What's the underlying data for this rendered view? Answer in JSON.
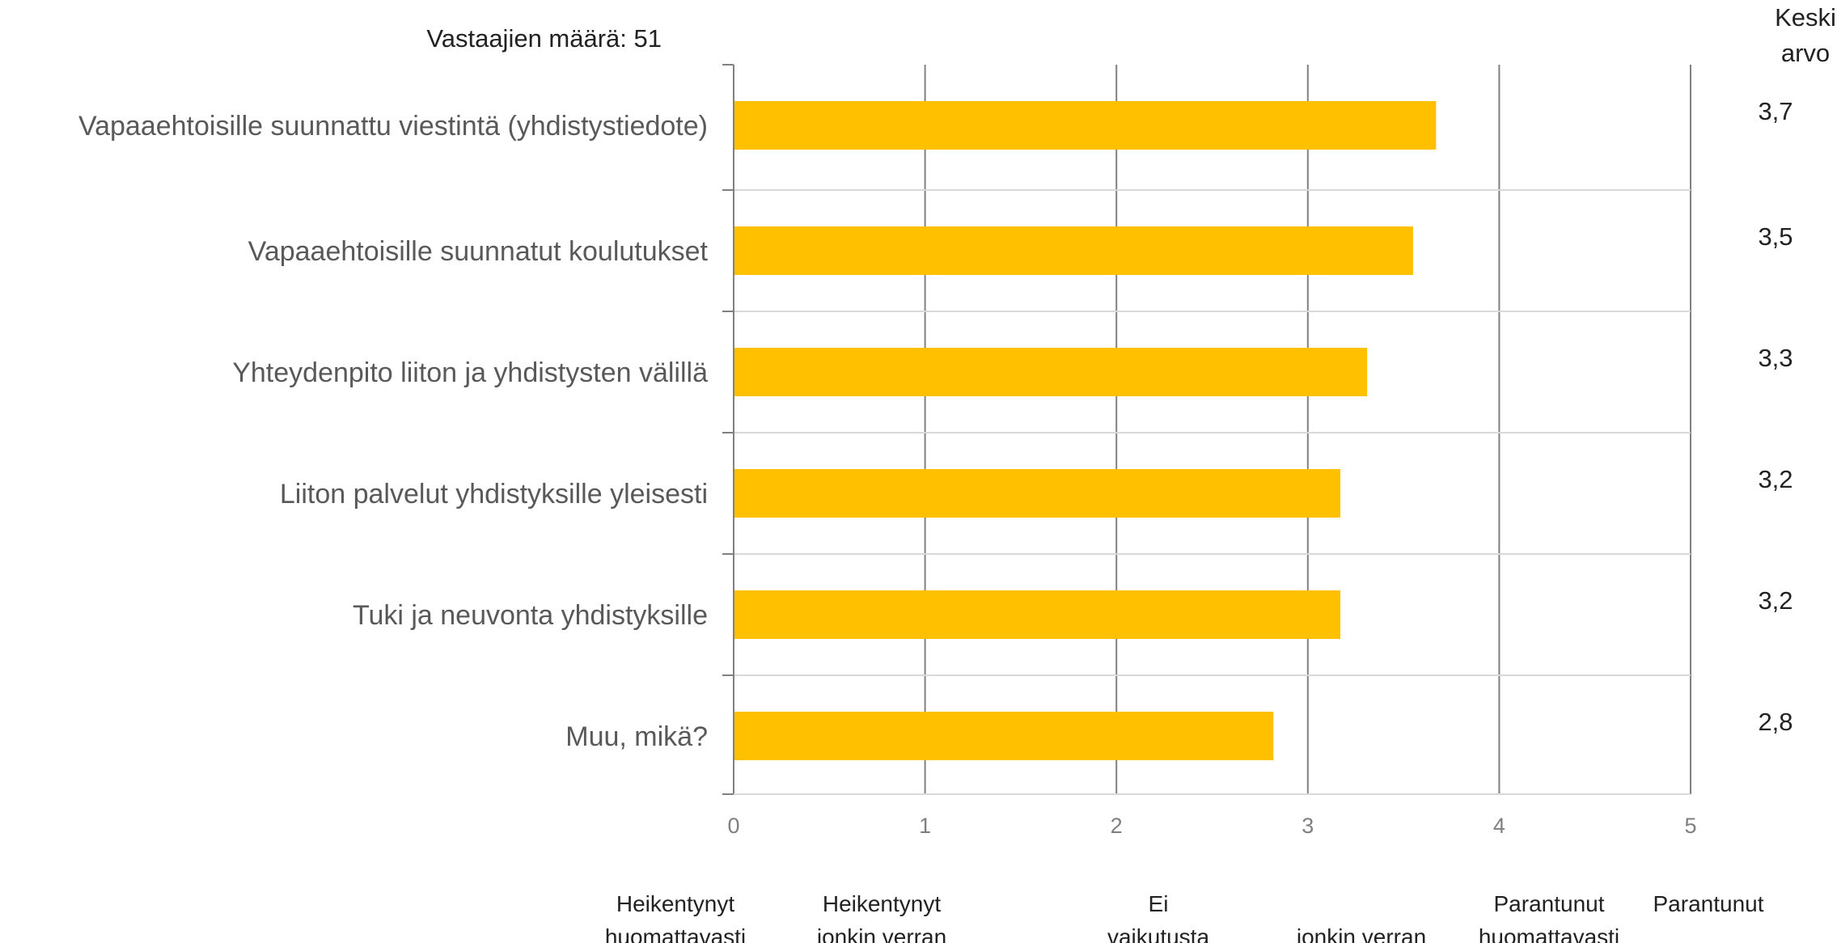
{
  "chart_data": {
    "type": "bar",
    "orientation": "horizontal",
    "respondents_text": "Vastaajien määrä: 51",
    "mean_header": [
      "Keski",
      "arvo"
    ],
    "categories": [
      "Vapaaehtoisille suunnattu viestintä (yhdistystiedote)",
      "Vapaaehtoisille suunnatut koulutukset",
      "Yhteydenpito liiton ja yhdistysten välillä",
      "Liiton palvelut yhdistyksille yleisesti",
      "Tuki ja neuvonta yhdistyksille",
      "Muu, mikä?"
    ],
    "values": [
      3.67,
      3.55,
      3.31,
      3.17,
      3.17,
      2.82
    ],
    "mean_labels": [
      "3,7",
      "3,5",
      "3,3",
      "3,2",
      "3,2",
      "2,8"
    ],
    "xlim": [
      0,
      5
    ],
    "xticks": [
      {
        "value": 0,
        "label": "0"
      },
      {
        "value": 1,
        "label": "1"
      },
      {
        "value": 2,
        "label": "2"
      },
      {
        "value": 3,
        "label": "3"
      },
      {
        "value": 4,
        "label": "4"
      },
      {
        "value": 5,
        "label": "5"
      }
    ],
    "scale_labels": [
      {
        "value": 0,
        "lines": [
          "Heikentynyt",
          "huomattavasti"
        ]
      },
      {
        "value": 1,
        "lines": [
          "Heikentynyt",
          "jonkin verran"
        ]
      },
      {
        "value": 2,
        "lines": [
          "Ei",
          "vaikutusta"
        ]
      },
      {
        "value": 3,
        "lines": [
          "",
          "jonkin verran"
        ]
      },
      {
        "value": 4,
        "lines": [
          "Parantunut",
          "huomattavasti"
        ]
      },
      {
        "value": 5,
        "lines": [
          "Parantunut",
          ""
        ]
      }
    ],
    "bar_color": "#FFC000",
    "grid": true,
    "gridline_color": "#808080",
    "separator_color": "#d9d9d9"
  }
}
